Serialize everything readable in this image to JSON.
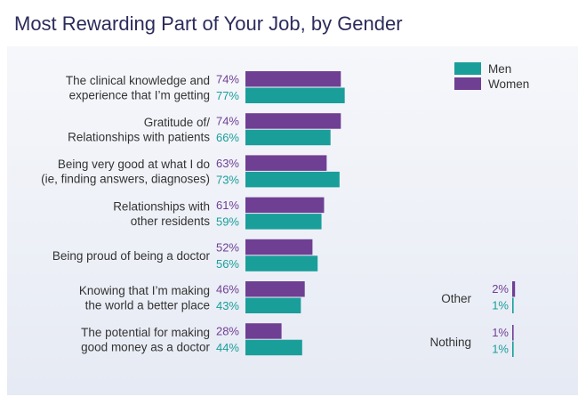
{
  "chart_data": {
    "type": "bar",
    "title": "Most Rewarding Part of Your Job, by Gender",
    "categories": [
      [
        "The clinical knowledge and",
        "experience that I’m getting"
      ],
      [
        "Gratitude of/",
        "Relationships with patients"
      ],
      [
        "Being very good at what I do",
        "(ie, finding answers, diagnoses)"
      ],
      [
        "Relationships with",
        "other residents"
      ],
      [
        "Being proud of being a doctor"
      ],
      [
        "Knowing that I’m making",
        "the world a better place"
      ],
      [
        "The potential for making",
        "good money as a doctor"
      ]
    ],
    "series": [
      {
        "name": "Women",
        "values": [
          74,
          74,
          63,
          61,
          52,
          46,
          28
        ],
        "labels": [
          "74%",
          "74%",
          "63%",
          "61%",
          "52%",
          "46%",
          "28%"
        ]
      },
      {
        "name": "Men",
        "values": [
          77,
          66,
          73,
          59,
          56,
          43,
          44
        ],
        "labels": [
          "77%",
          "66%",
          "73%",
          "59%",
          "56%",
          "43%",
          "44%"
        ]
      }
    ],
    "extra_categories": [
      {
        "label": "Other",
        "women": 2,
        "men": 1,
        "women_label": "2%",
        "men_label": "1%"
      },
      {
        "label": "Nothing",
        "women": 1,
        "men": 1,
        "women_label": "1%",
        "men_label": "1%"
      }
    ],
    "legend": [
      {
        "name": "Men",
        "color": "#1a9e9a"
      },
      {
        "name": "Women",
        "color": "#6f3f93"
      }
    ],
    "legend_position": "top-right",
    "colors": {
      "women": "#6f3f93",
      "men": "#1a9e9a",
      "title": "#2b2b5c",
      "label": "#333333"
    }
  }
}
